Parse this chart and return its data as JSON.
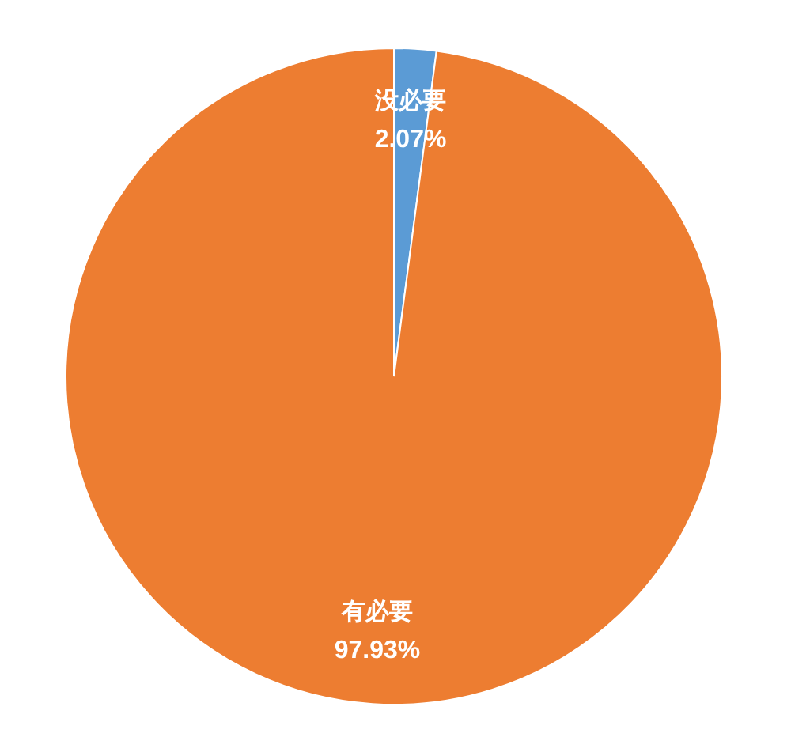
{
  "chart_data": {
    "type": "pie",
    "categories": [
      "没必要",
      "有必要"
    ],
    "values": [
      2.07,
      97.93
    ],
    "colors": [
      "#5b9bd5",
      "#ed7d31"
    ],
    "value_labels": [
      "2.07%",
      "97.93%"
    ],
    "legend": false
  }
}
